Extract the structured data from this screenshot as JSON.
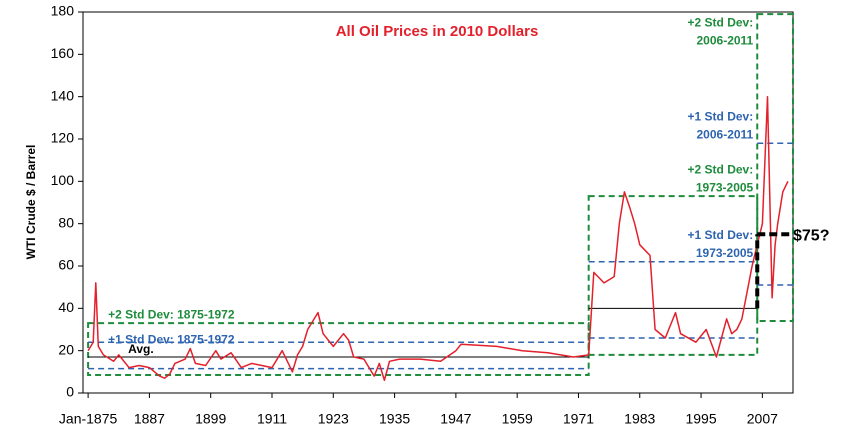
{
  "chart_data": {
    "type": "line",
    "title": "All Oil Prices in 2010 Dollars",
    "ylabel": "WTI Crude $ / Barrel",
    "color": "#e3202b",
    "x": [
      1875,
      1876,
      1876.5,
      1877,
      1878,
      1880,
      1881,
      1883,
      1885,
      1887,
      1889,
      1890,
      1891,
      1892,
      1894,
      1895,
      1896,
      1898,
      1900,
      1901,
      1903,
      1905,
      1907,
      1909,
      1911,
      1913,
      1915,
      1916,
      1917,
      1918,
      1920,
      1921,
      1923,
      1925,
      1926,
      1927,
      1929,
      1931,
      1932,
      1933,
      1934,
      1936,
      1940,
      1944,
      1947,
      1948,
      1955,
      1960,
      1965,
      1970,
      1973,
      1974,
      1976,
      1978,
      1979,
      1980,
      1981,
      1982,
      1983,
      1985,
      1986,
      1988,
      1990,
      1991,
      1994,
      1996,
      1998,
      2000,
      2001,
      2002,
      2003,
      2005,
      2006,
      2007,
      2008,
      2008.9,
      2009.5,
      2010,
      2011,
      2012
    ],
    "values": [
      20,
      24,
      52,
      22,
      18,
      15,
      18,
      12,
      13,
      12,
      8,
      7,
      9,
      14,
      16,
      21,
      14,
      13,
      20,
      16,
      19,
      12,
      14,
      13,
      12,
      20,
      10,
      18,
      22,
      30,
      38,
      28,
      22,
      28,
      25,
      17,
      16,
      8,
      14,
      6,
      15,
      16,
      16,
      15,
      20,
      23,
      22,
      20,
      19,
      17,
      18,
      57,
      52,
      55,
      80,
      95,
      88,
      80,
      70,
      65,
      30,
      26,
      38,
      28,
      24,
      30,
      17,
      35,
      28,
      30,
      35,
      60,
      70,
      80,
      140,
      45,
      70,
      80,
      95,
      100
    ],
    "xlim": [
      1874,
      2013
    ],
    "xticks": [
      {
        "value": 1875,
        "label": "Jan-1875"
      },
      1887,
      1899,
      1911,
      1923,
      1935,
      1947,
      1959,
      1971,
      1983,
      1995,
      2007
    ],
    "ylim": [
      0,
      180
    ],
    "yticks": [
      0,
      20,
      40,
      60,
      80,
      100,
      120,
      140,
      160,
      180
    ],
    "sd2_color": "#1e8c3c",
    "sd1_color": "#2e64b0",
    "periods": [
      {
        "from": 1875,
        "to": 1973,
        "avg": 17,
        "avg_label": "Avg.",
        "sd1": [
          11.5,
          24
        ],
        "sd2": [
          8.5,
          33
        ],
        "sd1_label": [
          "+1 Std Dev:  1875-1972"
        ],
        "sd2_label": [
          "+2 Std Dev:  1875-1972"
        ]
      },
      {
        "from": 1973,
        "to": 2006,
        "avg": 40,
        "sd1": [
          26,
          62
        ],
        "sd2": [
          18,
          93
        ],
        "sd1_label": [
          "+1 Std Dev:",
          "1973-2005"
        ],
        "sd2_label": [
          "+2 Std Dev:",
          "1973-2005"
        ]
      },
      {
        "from": 2006,
        "to": 2013,
        "sd1": [
          51,
          118
        ],
        "sd2": [
          34,
          179
        ],
        "sd1_label": [
          "+1 Std Dev:",
          "2006-2011"
        ],
        "sd2_label": [
          "+2 Std Dev:",
          "2006-2011"
        ]
      }
    ],
    "projection": {
      "x": 2006,
      "from": 40,
      "value": 75,
      "label": "$75?"
    }
  }
}
